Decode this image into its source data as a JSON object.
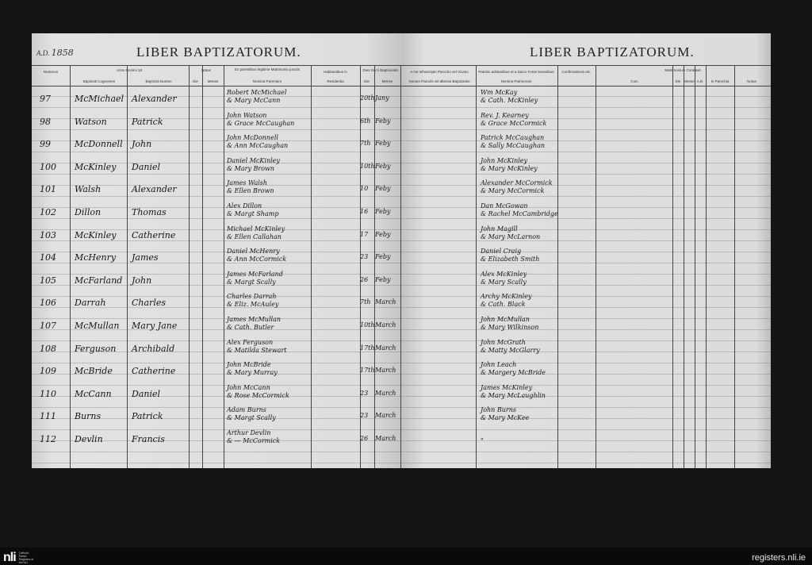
{
  "left_page": {
    "year_prefix": "A.D.",
    "year": "1858",
    "title": "LIBER BAPTIZATORUM.",
    "headers": {
      "numerus": "Numerus",
      "anno_domini": "Anno Domini 18",
      "cognomen": "Baptizati Cognomen",
      "nomen": "Baptizati Nomen",
      "natus": "Natus",
      "die": "Die",
      "mense": "Mense",
      "parents_group": "Ex parentibus legitime Matrimonio junctis",
      "parents": "Nomina Parentum",
      "habitantibus": "Habitantibus in",
      "residentia": "Residentia",
      "baptism_date": "Dies Sacri Baptismatis",
      "bap_die": "Die",
      "bap_mense": "Mense"
    }
  },
  "right_page": {
    "title": "LIBER BAPTIZATORUM.",
    "headers": {
      "baptizer_group": "A me infrascripto Parocho vel Vicario",
      "baptizer": "Nomen Parochi vel alterius Baptizantis",
      "sponsors_group": "Patrinis adstantibus et a Sacro Fonte levantibus",
      "sponsors": "Nomina Patrinorum",
      "confirmation": "Confirmationis etc.",
      "marriage_group": "Matrimonium Contraxit",
      "cum": "Cum",
      "die": "Die",
      "mense": "Mense",
      "ad": "A.D.",
      "parochia": "In Parochia",
      "notae": "Notae"
    }
  },
  "entries": [
    {
      "num": "97",
      "surname": "McMichael",
      "name": "Alexander",
      "father": "Robert McMichael",
      "mother": "& Mary McCann",
      "day": "20th",
      "month": "Jany",
      "sponsor1": "Wm McKay",
      "sponsor2": "& Cath. McKinley"
    },
    {
      "num": "98",
      "surname": "Watson",
      "name": "Patrick",
      "father": "John Watson",
      "mother": "& Grace McCaughan",
      "day": "6th",
      "month": "Feby",
      "sponsor1": "Rev. J. Kearney",
      "sponsor2": "& Grace McCormick"
    },
    {
      "num": "99",
      "surname": "McDonnell",
      "name": "John",
      "father": "John McDonnell",
      "mother": "& Ann McCaughan",
      "day": "7th",
      "month": "Feby",
      "sponsor1": "Patrick McCaughan",
      "sponsor2": "& Sally McCaughan"
    },
    {
      "num": "100",
      "surname": "McKinley",
      "name": "Daniel",
      "father": "Daniel McKinley",
      "mother": "& Mary Brown",
      "day": "10th",
      "month": "Feby",
      "sponsor1": "John McKinley",
      "sponsor2": "& Mary McKinley"
    },
    {
      "num": "101",
      "surname": "Walsh",
      "name": "Alexander",
      "father": "James Walsh",
      "mother": "& Ellen Brown",
      "day": "10",
      "month": "Feby",
      "sponsor1": "Alexander McCormick",
      "sponsor2": "& Mary McCormick"
    },
    {
      "num": "102",
      "surname": "Dillon",
      "name": "Thomas",
      "father": "Alex Dillon",
      "mother": "& Margt Shamp",
      "day": "16",
      "month": "Feby",
      "sponsor1": "Dan McGowan",
      "sponsor2": "& Rachel McCambridge"
    },
    {
      "num": "103",
      "surname": "McKinley",
      "name": "Catherine",
      "father": "Michael McKinley",
      "mother": "& Ellen Callahan",
      "day": "17",
      "month": "Feby",
      "sponsor1": "John Magill",
      "sponsor2": "& Mary McLarnon"
    },
    {
      "num": "104",
      "surname": "McHenry",
      "name": "James",
      "father": "Daniel McHenry",
      "mother": "& Ann McCormick",
      "day": "23",
      "month": "Feby",
      "sponsor1": "Daniel Craig",
      "sponsor2": "& Elizabeth Smith"
    },
    {
      "num": "105",
      "surname": "McFarland",
      "name": "John",
      "father": "James McFarland",
      "mother": "& Margt Scally",
      "day": "26",
      "month": "Feby",
      "sponsor1": "Alex McKinley",
      "sponsor2": "& Mary Scally"
    },
    {
      "num": "106",
      "surname": "Darrah",
      "name": "Charles",
      "father": "Charles Darrah",
      "mother": "& Eliz. McAuley",
      "day": "7th",
      "month": "March",
      "sponsor1": "Archy McKinley",
      "sponsor2": "& Cath. Black"
    },
    {
      "num": "107",
      "surname": "McMullan",
      "name": "Mary Jane",
      "father": "James McMullan",
      "mother": "& Cath. Butler",
      "day": "10th",
      "month": "March",
      "sponsor1": "John McMullan",
      "sponsor2": "& Mary Wilkinson"
    },
    {
      "num": "108",
      "surname": "Ferguson",
      "name": "Archibald",
      "father": "Alex Ferguson",
      "mother": "& Matilda Stewart",
      "day": "17th",
      "month": "March",
      "sponsor1": "John McGrath",
      "sponsor2": "& Matty McGlarry"
    },
    {
      "num": "109",
      "surname": "McBride",
      "name": "Catherine",
      "father": "John McBride",
      "mother": "& Mary Murray",
      "day": "17th",
      "month": "March",
      "sponsor1": "John Leach",
      "sponsor2": "& Margery McBride"
    },
    {
      "num": "110",
      "surname": "McCann",
      "name": "Daniel",
      "father": "John McCann",
      "mother": "& Rose McCormick",
      "day": "23",
      "month": "March",
      "sponsor1": "James McKinley",
      "sponsor2": "& Mary McLaughlin"
    },
    {
      "num": "111",
      "surname": "Burns",
      "name": "Patrick",
      "father": "Adam Burns",
      "mother": "& Margt Scally",
      "day": "23",
      "month": "March",
      "sponsor1": "John Burns",
      "sponsor2": "& Mary McKee"
    },
    {
      "num": "112",
      "surname": "Devlin",
      "name": "Francis",
      "father": "Arthur Devlin",
      "mother": "& — McCormick",
      "day": "26",
      "month": "March",
      "sponsor1": "",
      "sponsor2": "\""
    }
  ],
  "footer": {
    "logo": "nli",
    "logo_text": "Catholic Parish Registers at the NLI",
    "site": "registers.nli.ie"
  }
}
